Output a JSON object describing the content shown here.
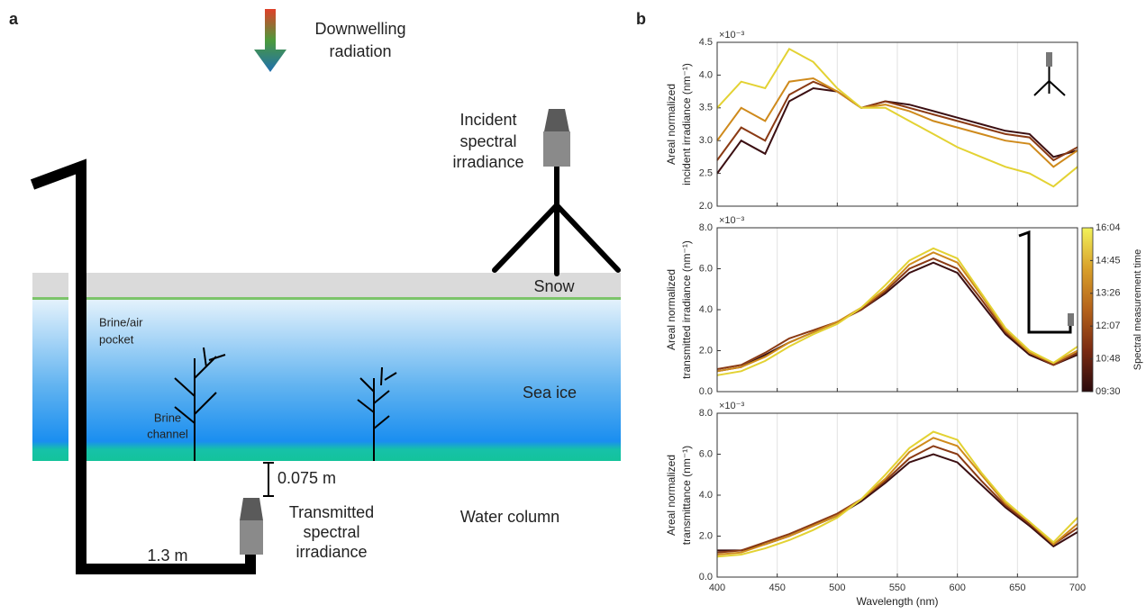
{
  "panel_labels": [
    "a",
    "b"
  ],
  "diagram": {
    "downwelling": [
      "Downwelling",
      "radiation"
    ],
    "incident": [
      "Incident",
      "spectral",
      "irradiance"
    ],
    "snow": "Snow",
    "pocket": [
      "Brine/air",
      "pocket"
    ],
    "sea_ice": "Sea ice",
    "channel": [
      "Brine",
      "channel"
    ],
    "gap": "0.075 m",
    "transmitted": [
      "Transmitted",
      "spectral",
      "irradiance"
    ],
    "water": "Water column",
    "arm": "1.3 m"
  },
  "chart_data": [
    {
      "type": "line",
      "ylabel": [
        "Areal normalized",
        "incident irradiance (nm⁻¹)"
      ],
      "offset_text": "×10⁻³",
      "x": [
        400,
        420,
        440,
        460,
        480,
        500,
        520,
        540,
        560,
        580,
        600,
        620,
        640,
        660,
        680,
        700
      ],
      "xlim": [
        400,
        700
      ],
      "xticks": [
        400,
        450,
        500,
        550,
        600,
        650,
        700
      ],
      "show_xtick_labels": false,
      "xgrid": true,
      "ylim": [
        2,
        4.5
      ],
      "yticks": [
        {
          "value": 2,
          "label": "2.0"
        },
        2.5,
        {
          "value": 3,
          "label": "3.0"
        },
        3.5,
        {
          "value": 4,
          "label": "4.0"
        },
        4.5
      ],
      "series": [
        {
          "color": "#3b0f12",
          "values": [
            2.5,
            3.0,
            2.8,
            3.6,
            3.8,
            3.75,
            3.5,
            3.6,
            3.55,
            3.45,
            3.35,
            3.25,
            3.15,
            3.1,
            2.75,
            2.85
          ]
        },
        {
          "color": "#8a3a14",
          "values": [
            2.7,
            3.2,
            3.0,
            3.7,
            3.9,
            3.75,
            3.5,
            3.6,
            3.5,
            3.4,
            3.3,
            3.2,
            3.1,
            3.05,
            2.7,
            2.9
          ]
        },
        {
          "color": "#cf8a1c",
          "values": [
            3.0,
            3.5,
            3.3,
            3.9,
            3.95,
            3.75,
            3.5,
            3.55,
            3.45,
            3.3,
            3.2,
            3.1,
            3.0,
            2.95,
            2.6,
            2.85
          ]
        },
        {
          "color": "#e3d233",
          "values": [
            3.5,
            3.9,
            3.8,
            4.4,
            4.2,
            3.8,
            3.5,
            3.5,
            3.3,
            3.1,
            2.9,
            2.75,
            2.6,
            2.5,
            2.3,
            2.6
          ]
        }
      ]
    },
    {
      "type": "line",
      "ylabel": [
        "Areal normalized",
        "transmitted irradiance (nm⁻¹)"
      ],
      "offset_text": "×10⁻³",
      "x": [
        400,
        420,
        440,
        460,
        480,
        500,
        520,
        540,
        560,
        580,
        600,
        620,
        640,
        660,
        680,
        700
      ],
      "xlim": [
        400,
        700
      ],
      "xticks": [
        400,
        450,
        500,
        550,
        600,
        650,
        700
      ],
      "show_xtick_labels": false,
      "xgrid": true,
      "ylim": [
        0,
        8
      ],
      "yticks": [
        {
          "value": 0,
          "label": "0.0"
        },
        {
          "value": 2,
          "label": "2.0"
        },
        {
          "value": 4,
          "label": "4.0"
        },
        {
          "value": 6,
          "label": "6.0"
        },
        {
          "value": 8,
          "label": "8.0"
        }
      ],
      "series": [
        {
          "color": "#3b0f12",
          "values": [
            1.0,
            1.2,
            1.8,
            2.4,
            2.9,
            3.4,
            4.0,
            4.8,
            5.8,
            6.3,
            5.8,
            4.3,
            2.8,
            1.8,
            1.3,
            1.8
          ]
        },
        {
          "color": "#8a3a14",
          "values": [
            1.1,
            1.3,
            1.9,
            2.6,
            3.0,
            3.4,
            4.0,
            4.9,
            6.0,
            6.5,
            6.0,
            4.5,
            2.9,
            1.9,
            1.3,
            1.9
          ]
        },
        {
          "color": "#cf8a1c",
          "values": [
            1.0,
            1.2,
            1.7,
            2.4,
            2.9,
            3.4,
            4.1,
            5.0,
            6.2,
            6.8,
            6.3,
            4.7,
            3.0,
            1.9,
            1.4,
            2.0
          ]
        },
        {
          "color": "#e3d233",
          "values": [
            0.8,
            1.0,
            1.5,
            2.2,
            2.8,
            3.3,
            4.1,
            5.2,
            6.4,
            7.0,
            6.5,
            4.8,
            3.1,
            2.0,
            1.4,
            2.2
          ]
        }
      ],
      "colorbar": {
        "label": "Spectral measurement time",
        "ticks": [
          "16:04",
          "14:45",
          "13:26",
          "12:07",
          "10:48",
          "09:30"
        ],
        "colors": [
          "#f2f25a",
          "#d9a02a",
          "#b4621a",
          "#7a2a12",
          "#2a0a0c"
        ]
      }
    },
    {
      "type": "line",
      "ylabel": [
        "Areal normalized",
        "transmittance (nm⁻¹)"
      ],
      "offset_text": "×10⁻³",
      "xlabel": "Wavelength (nm)",
      "x": [
        400,
        420,
        440,
        460,
        480,
        500,
        520,
        540,
        560,
        580,
        600,
        620,
        640,
        660,
        680,
        700
      ],
      "xlim": [
        400,
        700
      ],
      "xticks": [
        400,
        450,
        500,
        550,
        600,
        650,
        700
      ],
      "show_xtick_labels": true,
      "xgrid": true,
      "ylim": [
        0,
        8
      ],
      "yticks": [
        {
          "value": 0,
          "label": "0.0"
        },
        {
          "value": 2,
          "label": "2.0"
        },
        {
          "value": 4,
          "label": "4.0"
        },
        {
          "value": 6,
          "label": "6.0"
        },
        {
          "value": 8,
          "label": "8.0"
        }
      ],
      "series": [
        {
          "color": "#3b0f12",
          "values": [
            1.3,
            1.3,
            1.6,
            2.0,
            2.5,
            3.0,
            3.7,
            4.6,
            5.6,
            6.0,
            5.6,
            4.5,
            3.4,
            2.5,
            1.5,
            2.2
          ]
        },
        {
          "color": "#8a3a14",
          "values": [
            1.2,
            1.3,
            1.7,
            2.1,
            2.6,
            3.1,
            3.8,
            4.7,
            5.8,
            6.4,
            6.0,
            4.7,
            3.5,
            2.6,
            1.6,
            2.4
          ]
        },
        {
          "color": "#cf8a1c",
          "values": [
            1.1,
            1.2,
            1.6,
            2.0,
            2.5,
            3.0,
            3.8,
            4.8,
            6.1,
            6.8,
            6.4,
            5.0,
            3.6,
            2.7,
            1.6,
            2.6
          ]
        },
        {
          "color": "#e3d233",
          "values": [
            1.0,
            1.1,
            1.4,
            1.8,
            2.3,
            2.9,
            3.8,
            5.0,
            6.3,
            7.1,
            6.7,
            5.1,
            3.7,
            2.7,
            1.7,
            2.9
          ]
        }
      ]
    }
  ]
}
